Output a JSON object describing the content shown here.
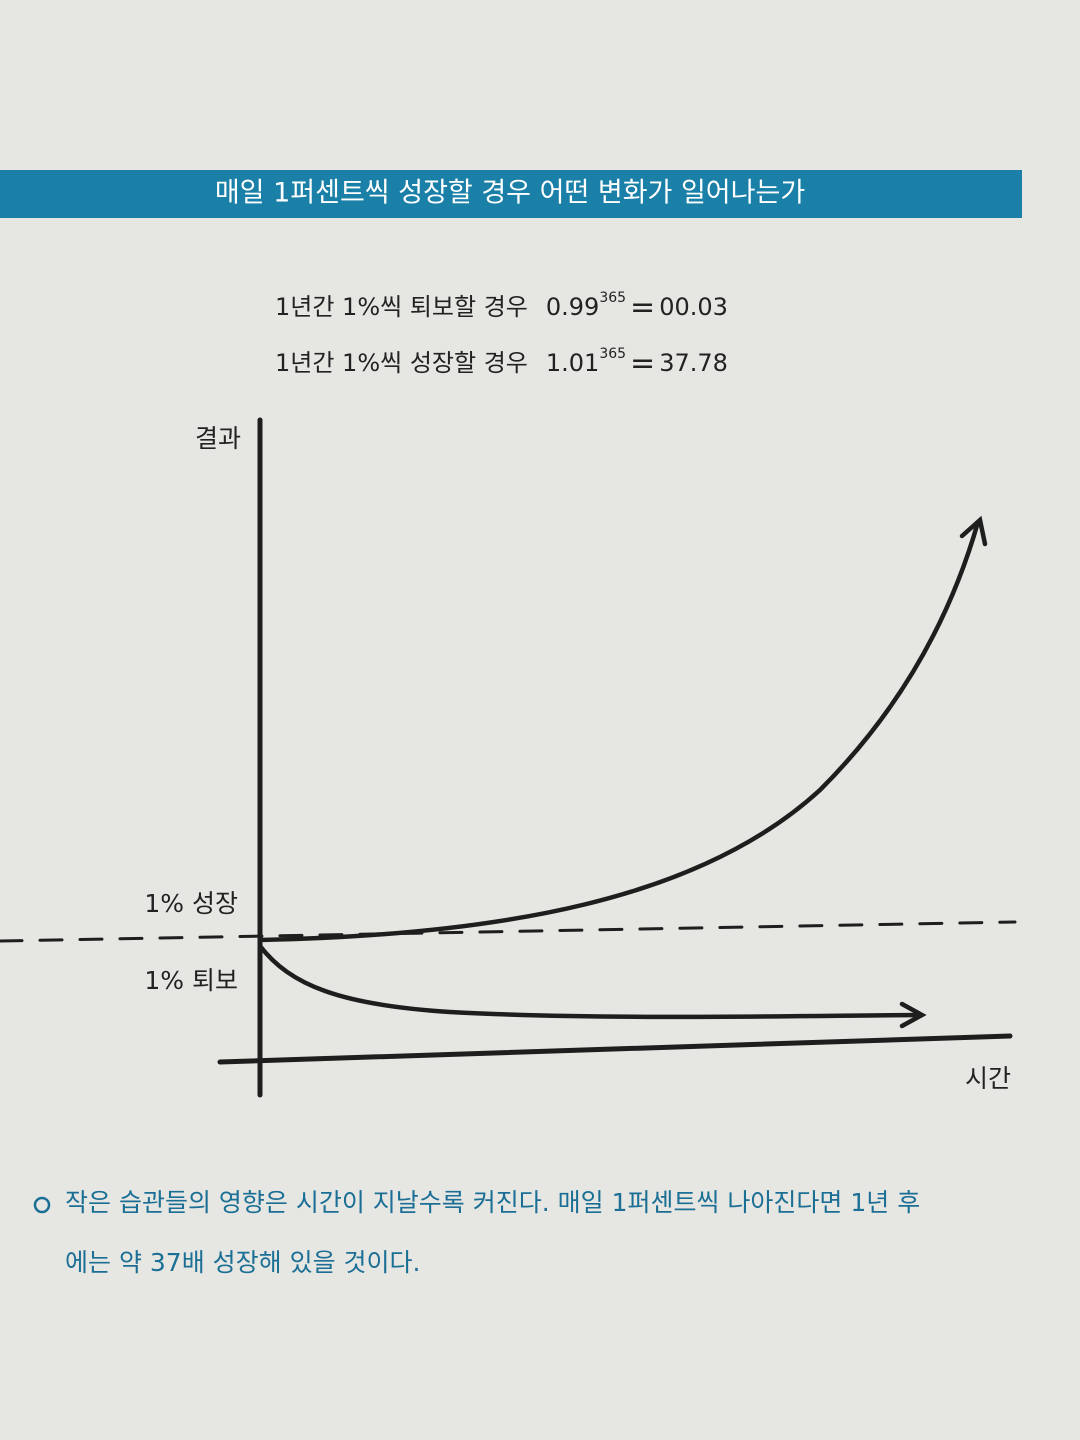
{
  "header": {
    "title": "매일 1퍼센트씩 성장할 경우 어떤 변화가 일어나는가"
  },
  "formulas": [
    {
      "label": "1년간 1%씩 퇴보할 경우",
      "base": "0.99",
      "exponent": "365",
      "equals": "=",
      "result": "00.03"
    },
    {
      "label": "1년간 1%씩 성장할 경우",
      "base": "1.01",
      "exponent": "365",
      "equals": "=",
      "result": "37.78"
    }
  ],
  "diagram": {
    "y_axis_label": "결과",
    "x_axis_label": "시간",
    "growth_label": "1% 성장",
    "decline_label": "1% 퇴보"
  },
  "caption": {
    "lines": [
      "작은 습관들의 영향은 시간이 지날수록 커진다. 매일 1퍼센트씩 나아진다면 1년 후",
      "에는 약 37배 성장해 있을 것이다."
    ]
  }
}
